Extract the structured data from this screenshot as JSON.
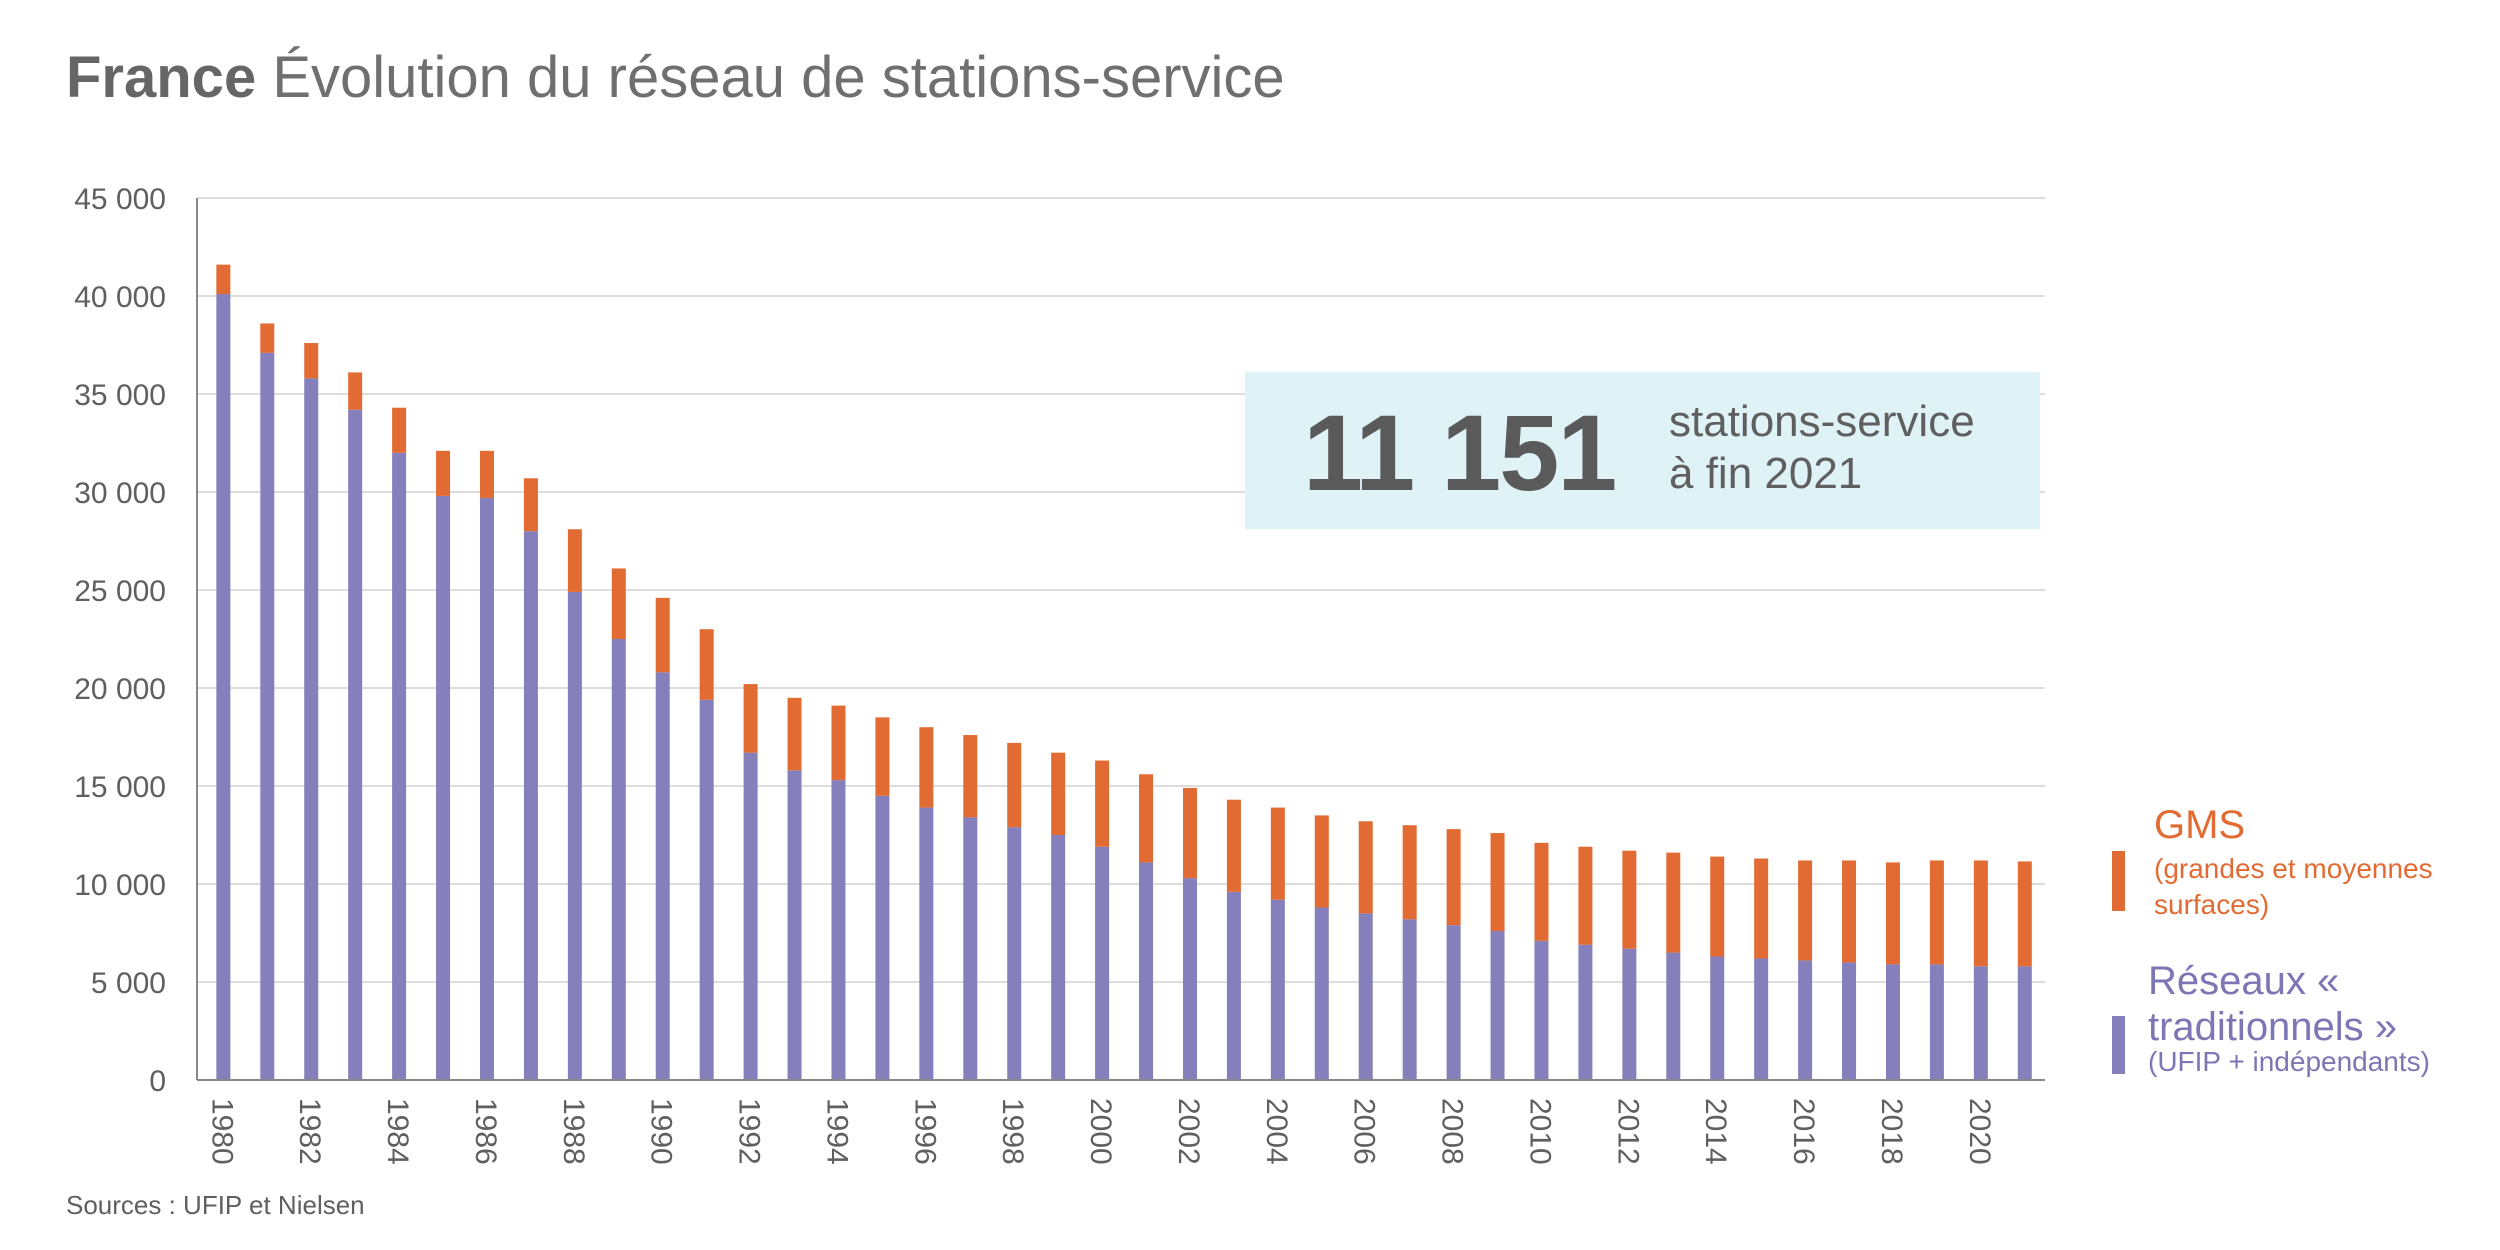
{
  "title": {
    "bold": "France",
    "rest": "Évolution du réseau de stations-service"
  },
  "highlight": {
    "value": "11 151",
    "line1": "stations-service",
    "line2": "à fin 2021"
  },
  "legend": {
    "gms_title": "GMS",
    "gms_sub": "(grandes et moyennes surfaces)",
    "reseaux_title": "Réseaux « traditionnels »",
    "reseaux_sub": "(UFIP + indépendants)"
  },
  "source": "Sources : UFIP et Nielsen",
  "colors": {
    "gms": "#e26b33",
    "reseaux": "#857fbb",
    "grid": "#dddddd",
    "axis": "#888888",
    "highlight_bg": "#dff2f6"
  },
  "chart_data": {
    "type": "bar",
    "stacked": true,
    "title": "France Évolution du réseau de stations-service",
    "xlabel": "",
    "ylabel": "",
    "ylim": [
      0,
      45000
    ],
    "yticks": [
      0,
      5000,
      10000,
      15000,
      20000,
      25000,
      30000,
      35000,
      40000,
      45000
    ],
    "ytick_labels": [
      "0",
      "5 000",
      "10 000",
      "15 000",
      "20 000",
      "25 000",
      "30 000",
      "35 000",
      "40 000",
      "45 000"
    ],
    "categories": [
      "1980",
      "1981",
      "1982",
      "1983",
      "1984",
      "1985",
      "1986",
      "1987",
      "1988",
      "1989",
      "1990",
      "1991",
      "1992",
      "1993",
      "1994",
      "1995",
      "1996",
      "1997",
      "1998",
      "1999",
      "2000",
      "2001",
      "2002",
      "2003",
      "2004",
      "2005",
      "2006",
      "2007",
      "2008",
      "2009",
      "2010",
      "2011",
      "2012",
      "2013",
      "2014",
      "2015",
      "2016",
      "2017",
      "2018",
      "2019",
      "2020",
      "2021"
    ],
    "xtick_labels": [
      "1980",
      "1982",
      "1984",
      "1986",
      "1988",
      "1990",
      "1992",
      "1994",
      "1996",
      "1998",
      "2000",
      "2002",
      "2004",
      "2006",
      "2008",
      "2010",
      "2012",
      "2014",
      "2016",
      "2018",
      "2020"
    ],
    "series": [
      {
        "name": "Réseaux « traditionnels » (UFIP + indépendants)",
        "color": "#857fbb",
        "values": [
          40100,
          37100,
          35800,
          34200,
          32000,
          29800,
          29700,
          28000,
          24900,
          22500,
          20800,
          19400,
          16700,
          15800,
          15300,
          14500,
          13900,
          13400,
          12900,
          12500,
          11900,
          11100,
          10300,
          9600,
          9200,
          8800,
          8500,
          8200,
          7900,
          7600,
          7100,
          6900,
          6700,
          6500,
          6300,
          6200,
          6100,
          6000,
          5900,
          5900,
          5800,
          5800
        ]
      },
      {
        "name": "GMS (grandes et moyennes surfaces)",
        "color": "#e26b33",
        "values": [
          1500,
          1500,
          1800,
          1900,
          2300,
          2300,
          2400,
          2700,
          3200,
          3600,
          3800,
          3600,
          3500,
          3700,
          3800,
          4000,
          4100,
          4200,
          4300,
          4200,
          4400,
          4500,
          4600,
          4700,
          4700,
          4700,
          4700,
          4800,
          4900,
          5000,
          5000,
          5000,
          5000,
          5100,
          5100,
          5100,
          5100,
          5200,
          5200,
          5300,
          5400,
          5351
        ]
      }
    ]
  }
}
